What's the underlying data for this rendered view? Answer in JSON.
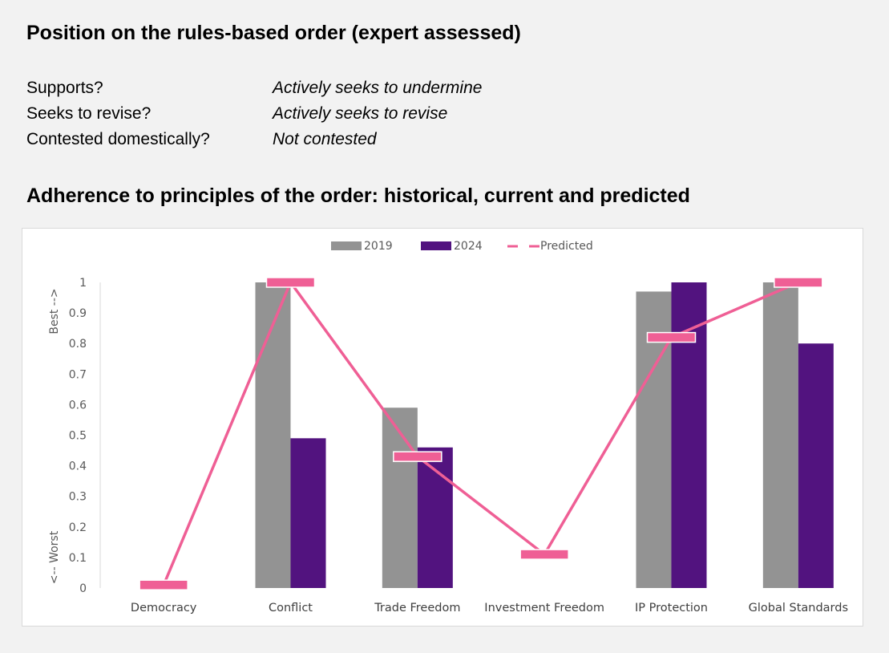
{
  "section1": {
    "title": "Position on the rules-based order (expert assessed)",
    "rows": [
      {
        "label": "Supports?",
        "value": "Actively seeks to undermine"
      },
      {
        "label": "Seeks to revise?",
        "value": "Actively seeks to revise"
      },
      {
        "label": "Contested domestically?",
        "value": "Not contested"
      }
    ]
  },
  "section2": {
    "title": "Adherence to principles of the order: historical, current and predicted"
  },
  "chart_data": {
    "type": "bar",
    "categories": [
      "Democracy",
      "Conflict",
      "Trade Freedom",
      "Investment Freedom",
      "IP Protection",
      "Global Standards"
    ],
    "series": [
      {
        "name": "2019",
        "type": "bar",
        "color": "#939393",
        "values": [
          null,
          1.0,
          0.59,
          null,
          0.97,
          1.0
        ]
      },
      {
        "name": "2024",
        "type": "bar",
        "color": "#52137f",
        "values": [
          null,
          0.49,
          0.46,
          null,
          1.0,
          0.8
        ]
      },
      {
        "name": "Predicted",
        "type": "line-marker",
        "color": "#ef5f95",
        "values": [
          0.01,
          1.0,
          0.43,
          0.11,
          0.82,
          1.0
        ]
      }
    ],
    "ylim": [
      0,
      1
    ],
    "yticks": [
      "0",
      "0.1",
      "0.2",
      "0.3",
      "0.4",
      "0.5",
      "0.6",
      "0.7",
      "0.8",
      "0.9",
      "1"
    ],
    "ylabel_top": "Best -->",
    "ylabel_bottom": "<-- Worst",
    "legend_position": "top-center",
    "grid": false
  }
}
